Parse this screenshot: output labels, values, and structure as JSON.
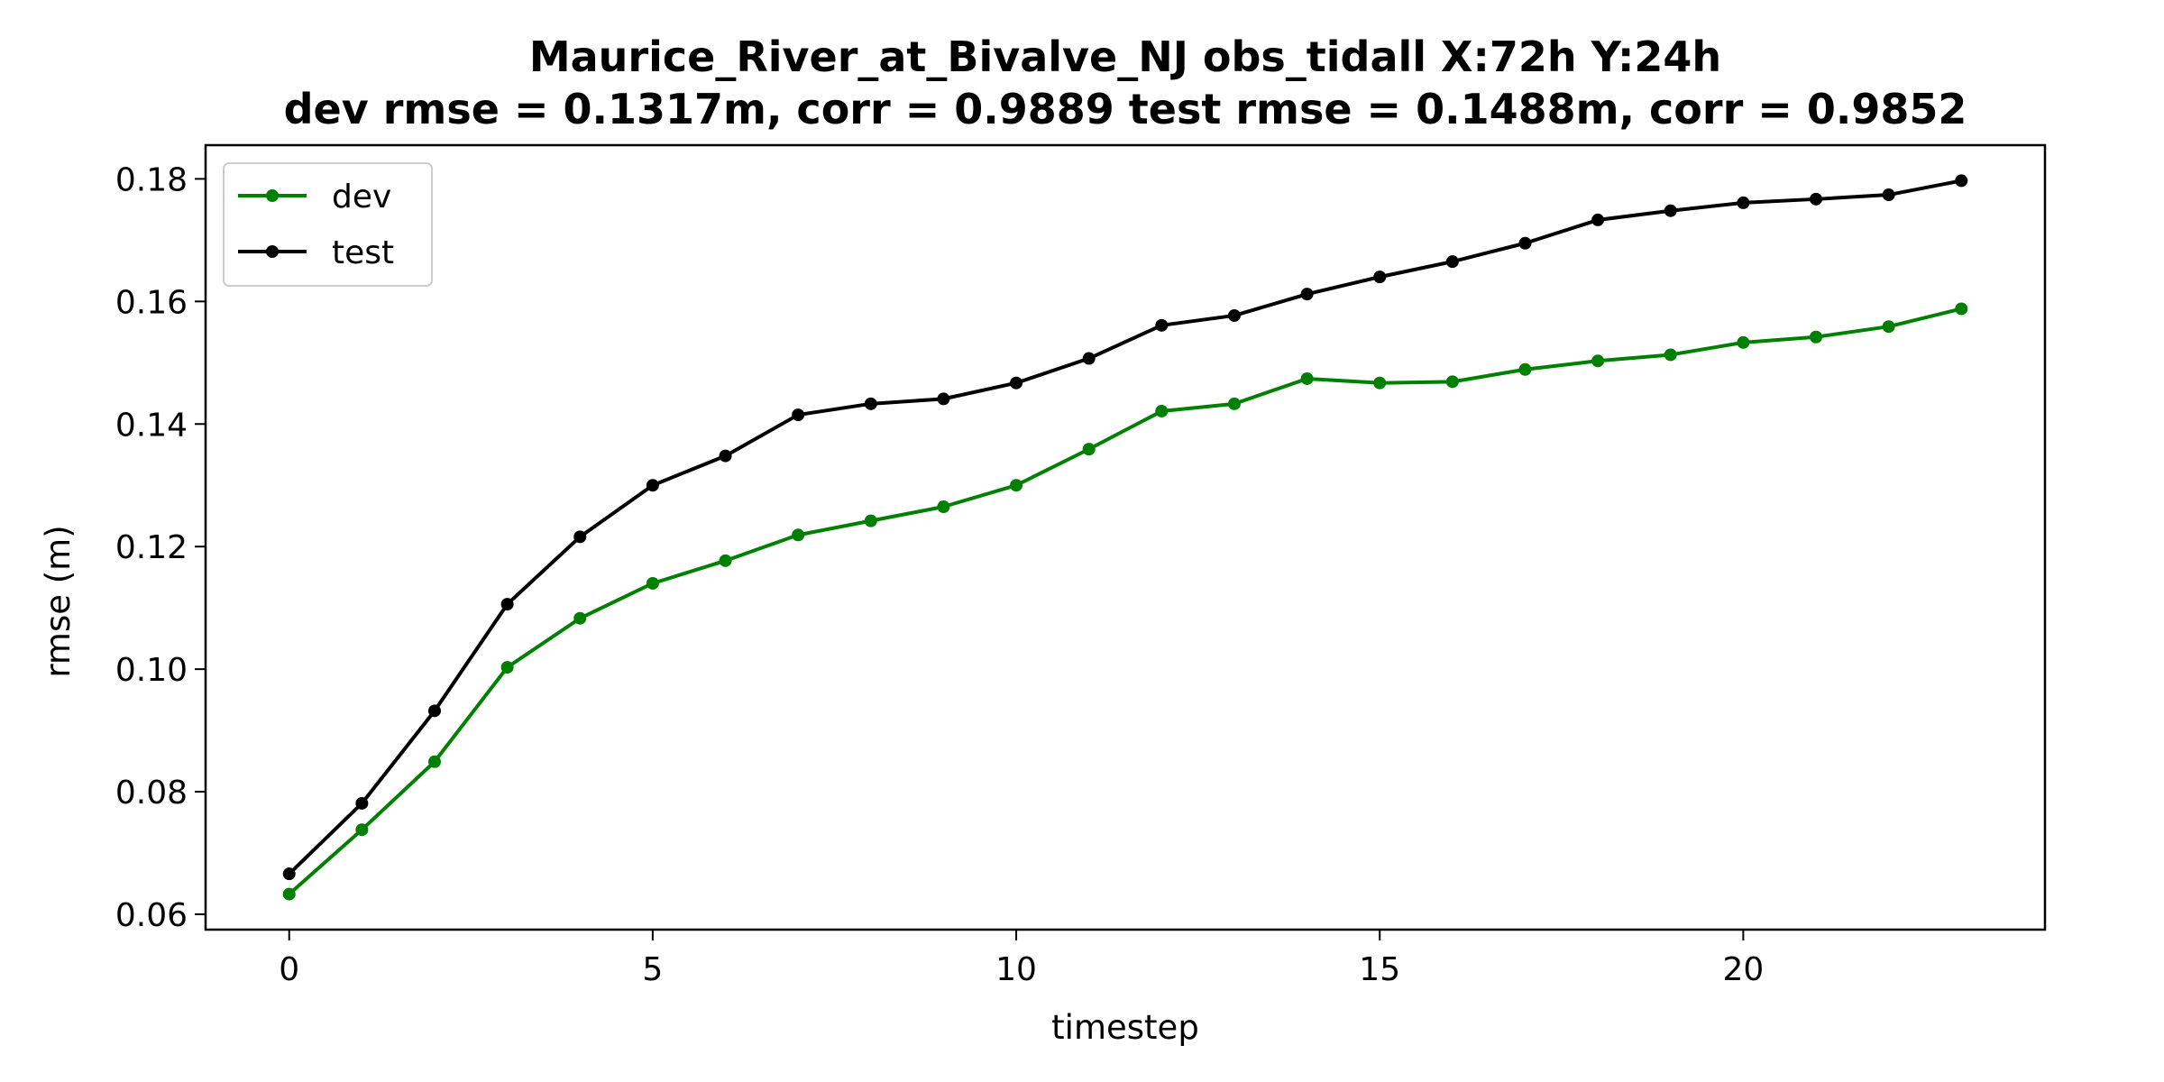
{
  "chart_data": {
    "type": "line",
    "title_line1": "Maurice_River_at_Bivalve_NJ   obs_tidall   X:72h   Y:24h",
    "title_line2": "dev rmse = 0.1317m, corr = 0.9889   test rmse = 0.1488m, corr = 0.9852",
    "xlabel": "timestep",
    "ylabel": "rmse (m)",
    "xlim": [
      -1.15,
      24.15
    ],
    "ylim": [
      0.0575,
      0.1855
    ],
    "xticks": [
      0,
      5,
      10,
      15,
      20
    ],
    "xtick_labels": [
      "0",
      "5",
      "10",
      "15",
      "20"
    ],
    "yticks": [
      0.06,
      0.08,
      0.1,
      0.12,
      0.14,
      0.16,
      0.18
    ],
    "ytick_labels": [
      "0.06",
      "0.08",
      "0.10",
      "0.12",
      "0.14",
      "0.16",
      "0.18"
    ],
    "grid": false,
    "legend_position": "upper-left",
    "x": [
      0,
      1,
      2,
      3,
      4,
      5,
      6,
      7,
      8,
      9,
      10,
      11,
      12,
      13,
      14,
      15,
      16,
      17,
      18,
      19,
      20,
      21,
      22,
      23
    ],
    "series": [
      {
        "name": "dev",
        "color": "#008000",
        "values": [
          0.0633,
          0.0738,
          0.0849,
          0.1003,
          0.1083,
          0.114,
          0.1177,
          0.1219,
          0.1242,
          0.1265,
          0.13,
          0.1359,
          0.1421,
          0.1433,
          0.1474,
          0.1467,
          0.1469,
          0.1489,
          0.1503,
          0.1513,
          0.1533,
          0.1542,
          0.1559,
          0.1588
        ]
      },
      {
        "name": "test",
        "color": "#000000",
        "values": [
          0.0666,
          0.0781,
          0.0932,
          0.1106,
          0.1216,
          0.13,
          0.1348,
          0.1415,
          0.1433,
          0.1441,
          0.1467,
          0.1507,
          0.1561,
          0.1577,
          0.1612,
          0.164,
          0.1665,
          0.1695,
          0.1733,
          0.1748,
          0.1761,
          0.1767,
          0.1774,
          0.1797
        ]
      }
    ]
  }
}
